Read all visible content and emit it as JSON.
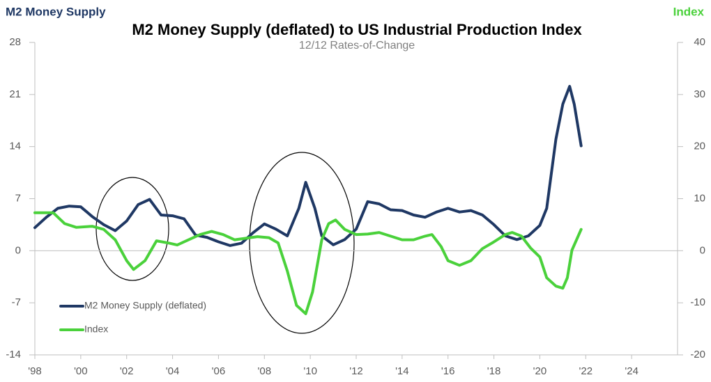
{
  "chart_data": {
    "type": "line",
    "title": "M2 Money Supply (deflated) to US Industrial Production Index",
    "subtitle": "12/12 Rates-of-Change",
    "y_axis_label": "M2 Money Supply",
    "y2_axis_label": "Index",
    "xlim": [
      1998,
      2026
    ],
    "xticks": [
      {
        "value": 1998,
        "label": "'98"
      },
      {
        "value": 2000,
        "label": "'00"
      },
      {
        "value": 2002,
        "label": "'02"
      },
      {
        "value": 2004,
        "label": "'04"
      },
      {
        "value": 2006,
        "label": "'06"
      },
      {
        "value": 2008,
        "label": "'08"
      },
      {
        "value": 2010,
        "label": "'10"
      },
      {
        "value": 2012,
        "label": "'12"
      },
      {
        "value": 2014,
        "label": "'14"
      },
      {
        "value": 2016,
        "label": "'16"
      },
      {
        "value": 2018,
        "label": "'18"
      },
      {
        "value": 2020,
        "label": "'20"
      },
      {
        "value": 2022,
        "label": "'22"
      },
      {
        "value": 2024,
        "label": "'24"
      }
    ],
    "ylim": [
      -14,
      28
    ],
    "yticks": [
      -14,
      -7,
      0,
      7,
      14,
      21,
      28
    ],
    "y2lim": [
      -20,
      40
    ],
    "y2ticks": [
      -20,
      -10,
      0,
      10,
      20,
      30,
      40
    ],
    "legend": "lower left",
    "series": [
      {
        "name": "M2 Money Supply (deflated)",
        "color": "#1f3864",
        "axis": "y",
        "x": [
          1998.0,
          1998.5,
          1999.0,
          1999.5,
          2000.0,
          2000.5,
          2001.0,
          2001.5,
          2002.0,
          2002.5,
          2003.0,
          2003.5,
          2004.0,
          2004.5,
          2005.0,
          2005.5,
          2006.0,
          2006.5,
          2007.0,
          2007.5,
          2008.0,
          2008.5,
          2009.0,
          2009.5,
          2009.8,
          2010.2,
          2010.5,
          2011.0,
          2011.5,
          2012.0,
          2012.5,
          2013.0,
          2013.5,
          2014.0,
          2014.5,
          2015.0,
          2015.5,
          2016.0,
          2016.5,
          2017.0,
          2017.5,
          2018.0,
          2018.5,
          2019.0,
          2019.5,
          2020.0,
          2020.3,
          2020.7,
          2021.0,
          2021.3,
          2021.5,
          2021.8
        ],
        "values": [
          3.1,
          4.5,
          5.7,
          6.0,
          5.9,
          4.6,
          3.5,
          2.7,
          4.0,
          6.2,
          6.9,
          4.8,
          4.7,
          4.3,
          2.1,
          1.8,
          1.2,
          0.7,
          1.0,
          2.4,
          3.6,
          2.9,
          2.0,
          5.7,
          9.2,
          5.7,
          2.0,
          0.8,
          1.5,
          2.9,
          6.6,
          6.3,
          5.5,
          5.4,
          4.8,
          4.5,
          5.2,
          5.7,
          5.2,
          5.4,
          4.8,
          3.5,
          2.0,
          1.5,
          2.0,
          3.4,
          5.7,
          15.0,
          19.7,
          22.1,
          19.7,
          14.1
        ]
      },
      {
        "name": "Index",
        "color": "#4ad13b",
        "axis": "y2",
        "x": [
          1998.0,
          1998.8,
          1999.3,
          1999.8,
          2000.5,
          2001.0,
          2001.5,
          2002.0,
          2002.3,
          2002.8,
          2003.3,
          2003.8,
          2004.2,
          2004.7,
          2005.2,
          2005.7,
          2006.2,
          2006.7,
          2007.2,
          2007.7,
          2008.2,
          2008.6,
          2009.0,
          2009.4,
          2009.8,
          2010.1,
          2010.5,
          2010.8,
          2011.1,
          2011.5,
          2012.0,
          2012.5,
          2013.0,
          2013.5,
          2014.0,
          2014.5,
          2015.0,
          2015.3,
          2015.7,
          2016.0,
          2016.5,
          2017.0,
          2017.5,
          2018.0,
          2018.5,
          2018.8,
          2019.2,
          2019.6,
          2020.0,
          2020.3,
          2020.7,
          2021.0,
          2021.2,
          2021.4,
          2021.8
        ],
        "values": [
          7.3,
          7.3,
          5.2,
          4.5,
          4.7,
          4.1,
          2.1,
          -1.9,
          -3.6,
          -1.9,
          1.9,
          1.5,
          1.1,
          2.1,
          3.1,
          3.7,
          3.1,
          2.1,
          2.4,
          2.7,
          2.5,
          1.5,
          -3.9,
          -10.5,
          -12.1,
          -7.9,
          2.1,
          5.2,
          5.9,
          4.1,
          3.1,
          3.2,
          3.5,
          2.8,
          2.1,
          2.1,
          2.8,
          3.1,
          0.8,
          -1.9,
          -2.8,
          -1.9,
          0.4,
          1.7,
          3.1,
          3.5,
          2.8,
          0.5,
          -1.2,
          -5.2,
          -6.8,
          -7.2,
          -5.2,
          0.1,
          4.1
        ]
      }
    ]
  }
}
